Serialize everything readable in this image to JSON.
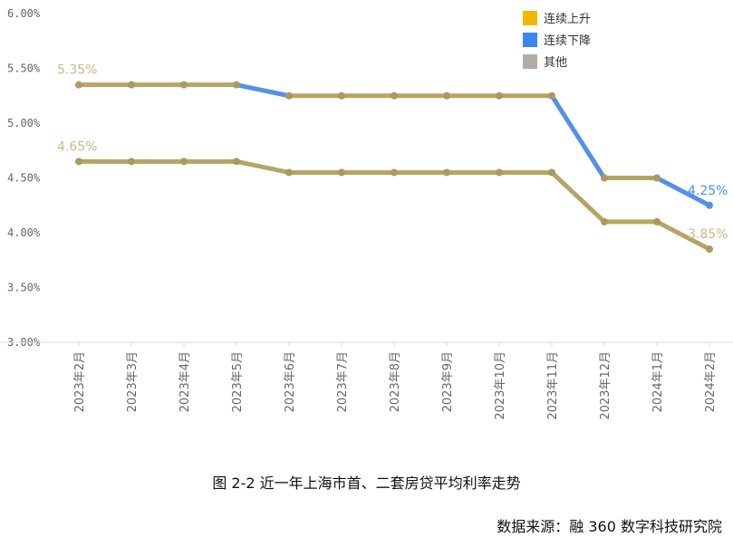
{
  "chart_data": {
    "type": "line",
    "categories": [
      "2023年2月",
      "2023年3月",
      "2023年4月",
      "2023年5月",
      "2023年6月",
      "2023年7月",
      "2023年8月",
      "2023年9月",
      "2023年10月",
      "2023年11月",
      "2023年12月",
      "2024年1月",
      "2024年2月"
    ],
    "series": [
      {
        "values": [
          5.35,
          5.35,
          5.35,
          5.35,
          5.25,
          5.25,
          5.25,
          5.25,
          5.25,
          5.25,
          4.5,
          4.5,
          4.25
        ]
      },
      {
        "values": [
          4.65,
          4.65,
          4.65,
          4.65,
          4.55,
          4.55,
          4.55,
          4.55,
          4.55,
          4.55,
          4.1,
          4.1,
          3.85
        ]
      }
    ],
    "data_labels": [
      {
        "series": 0,
        "index": 0,
        "text": "5.35%",
        "color": "#c8b98a"
      },
      {
        "series": 0,
        "index": 12,
        "text": "4.25%",
        "color": "#4a8fe6"
      },
      {
        "series": 1,
        "index": 0,
        "text": "4.65%",
        "color": "#c8b98a"
      },
      {
        "series": 1,
        "index": 12,
        "text": "3.85%",
        "color": "#c8b98a"
      }
    ],
    "ylim": [
      3.0,
      6.0
    ],
    "yticks": [
      {
        "value": 6.0,
        "label": "6.00%"
      },
      {
        "value": 5.5,
        "label": "5.50%"
      },
      {
        "value": 5.0,
        "label": "5.00%"
      },
      {
        "value": 4.5,
        "label": "4.50%"
      },
      {
        "value": 4.0,
        "label": "4.00%"
      },
      {
        "value": 3.5,
        "label": "3.50%"
      },
      {
        "value": 3.0,
        "label": "3.00%"
      }
    ],
    "legend": {
      "placement": "top-right",
      "items": [
        {
          "label": "连续上升",
          "color": "#f5b800"
        },
        {
          "label": "连续下降",
          "color": "#3a86f0"
        },
        {
          "label": "其他",
          "color": "#b5aba6"
        }
      ]
    },
    "colors": {
      "line": "#b4a565",
      "down": "#5590e6",
      "point": "#aa9a5c"
    }
  },
  "caption": "图 2-2  近一年上海市首、二套房贷平均利率走势",
  "source": "数据来源：融 360 数字科技研究院"
}
